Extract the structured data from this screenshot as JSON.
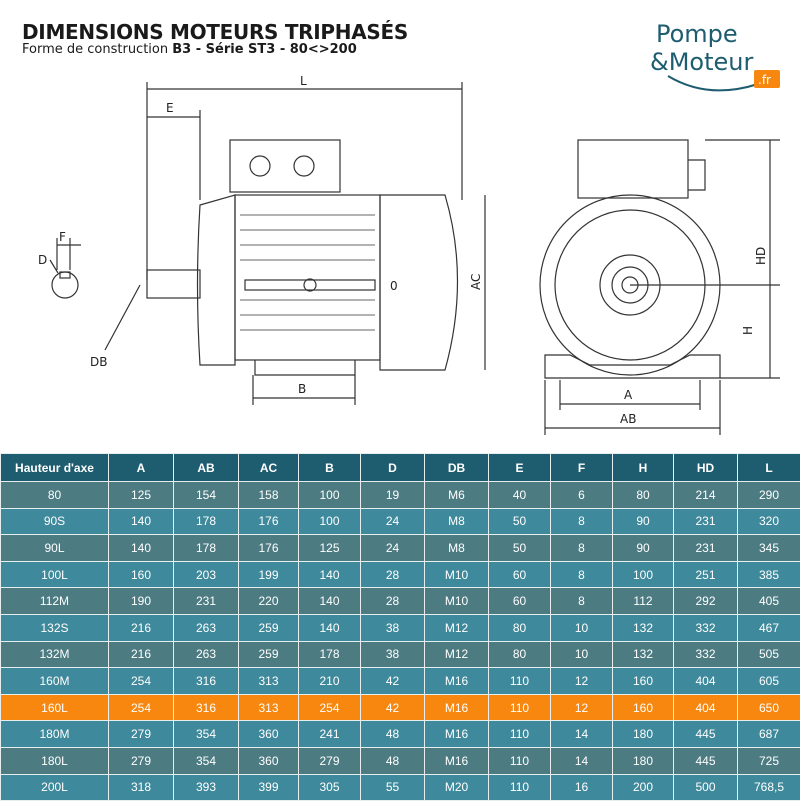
{
  "header": {
    "title": "DIMENSIONS MOTEURS TRIPHASÉS",
    "subtitle_prefix": "Forme de construction ",
    "subtitle_bold": "B3 - Série ST3 - 80<>200"
  },
  "logo": {
    "line1": "Pompe",
    "line2": "&Moteur",
    "badge": ".fr",
    "colors": {
      "text": "#1e5c70",
      "badge": "#f7870f"
    }
  },
  "diagram": {
    "labels": {
      "L": "L",
      "E": "E",
      "F": "F",
      "D": "D",
      "DB": "DB",
      "AC": "AC",
      "B": "B",
      "O": "0",
      "HD": "HD",
      "H": "H",
      "A": "A",
      "AB": "AB"
    }
  },
  "table": {
    "columns": [
      "Hauteur d'axe",
      "A",
      "AB",
      "AC",
      "B",
      "D",
      "DB",
      "E",
      "F",
      "H",
      "HD",
      "L"
    ],
    "rows": [
      {
        "cells": [
          "80",
          "125",
          "154",
          "158",
          "100",
          "19",
          "M6",
          "40",
          "6",
          "80",
          "214",
          "290"
        ],
        "highlighted": false
      },
      {
        "cells": [
          "90S",
          "140",
          "178",
          "176",
          "100",
          "24",
          "M8",
          "50",
          "8",
          "90",
          "231",
          "320"
        ],
        "highlighted": false
      },
      {
        "cells": [
          "90L",
          "140",
          "178",
          "176",
          "125",
          "24",
          "M8",
          "50",
          "8",
          "90",
          "231",
          "345"
        ],
        "highlighted": false
      },
      {
        "cells": [
          "100L",
          "160",
          "203",
          "199",
          "140",
          "28",
          "M10",
          "60",
          "8",
          "100",
          "251",
          "385"
        ],
        "highlighted": false
      },
      {
        "cells": [
          "112M",
          "190",
          "231",
          "220",
          "140",
          "28",
          "M10",
          "60",
          "8",
          "112",
          "292",
          "405"
        ],
        "highlighted": false
      },
      {
        "cells": [
          "132S",
          "216",
          "263",
          "259",
          "140",
          "38",
          "M12",
          "80",
          "10",
          "132",
          "332",
          "467"
        ],
        "highlighted": false
      },
      {
        "cells": [
          "132M",
          "216",
          "263",
          "259",
          "178",
          "38",
          "M12",
          "80",
          "10",
          "132",
          "332",
          "505"
        ],
        "highlighted": false
      },
      {
        "cells": [
          "160M",
          "254",
          "316",
          "313",
          "210",
          "42",
          "M16",
          "110",
          "12",
          "160",
          "404",
          "605"
        ],
        "highlighted": false
      },
      {
        "cells": [
          "160L",
          "254",
          "316",
          "313",
          "254",
          "42",
          "M16",
          "110",
          "12",
          "160",
          "404",
          "650"
        ],
        "highlighted": true
      },
      {
        "cells": [
          "180M",
          "279",
          "354",
          "360",
          "241",
          "48",
          "M16",
          "110",
          "14",
          "180",
          "445",
          "687"
        ],
        "highlighted": false
      },
      {
        "cells": [
          "180L",
          "279",
          "354",
          "360",
          "279",
          "48",
          "M16",
          "110",
          "14",
          "180",
          "445",
          "725"
        ],
        "highlighted": false
      },
      {
        "cells": [
          "200L",
          "318",
          "393",
          "399",
          "305",
          "55",
          "M20",
          "110",
          "16",
          "200",
          "500",
          "768,5"
        ],
        "highlighted": false
      }
    ],
    "colors": {
      "header": "#1e5c70",
      "row_dark": "#4d7b82",
      "row_light": "#3e899b",
      "highlight": "#f7870f"
    }
  }
}
